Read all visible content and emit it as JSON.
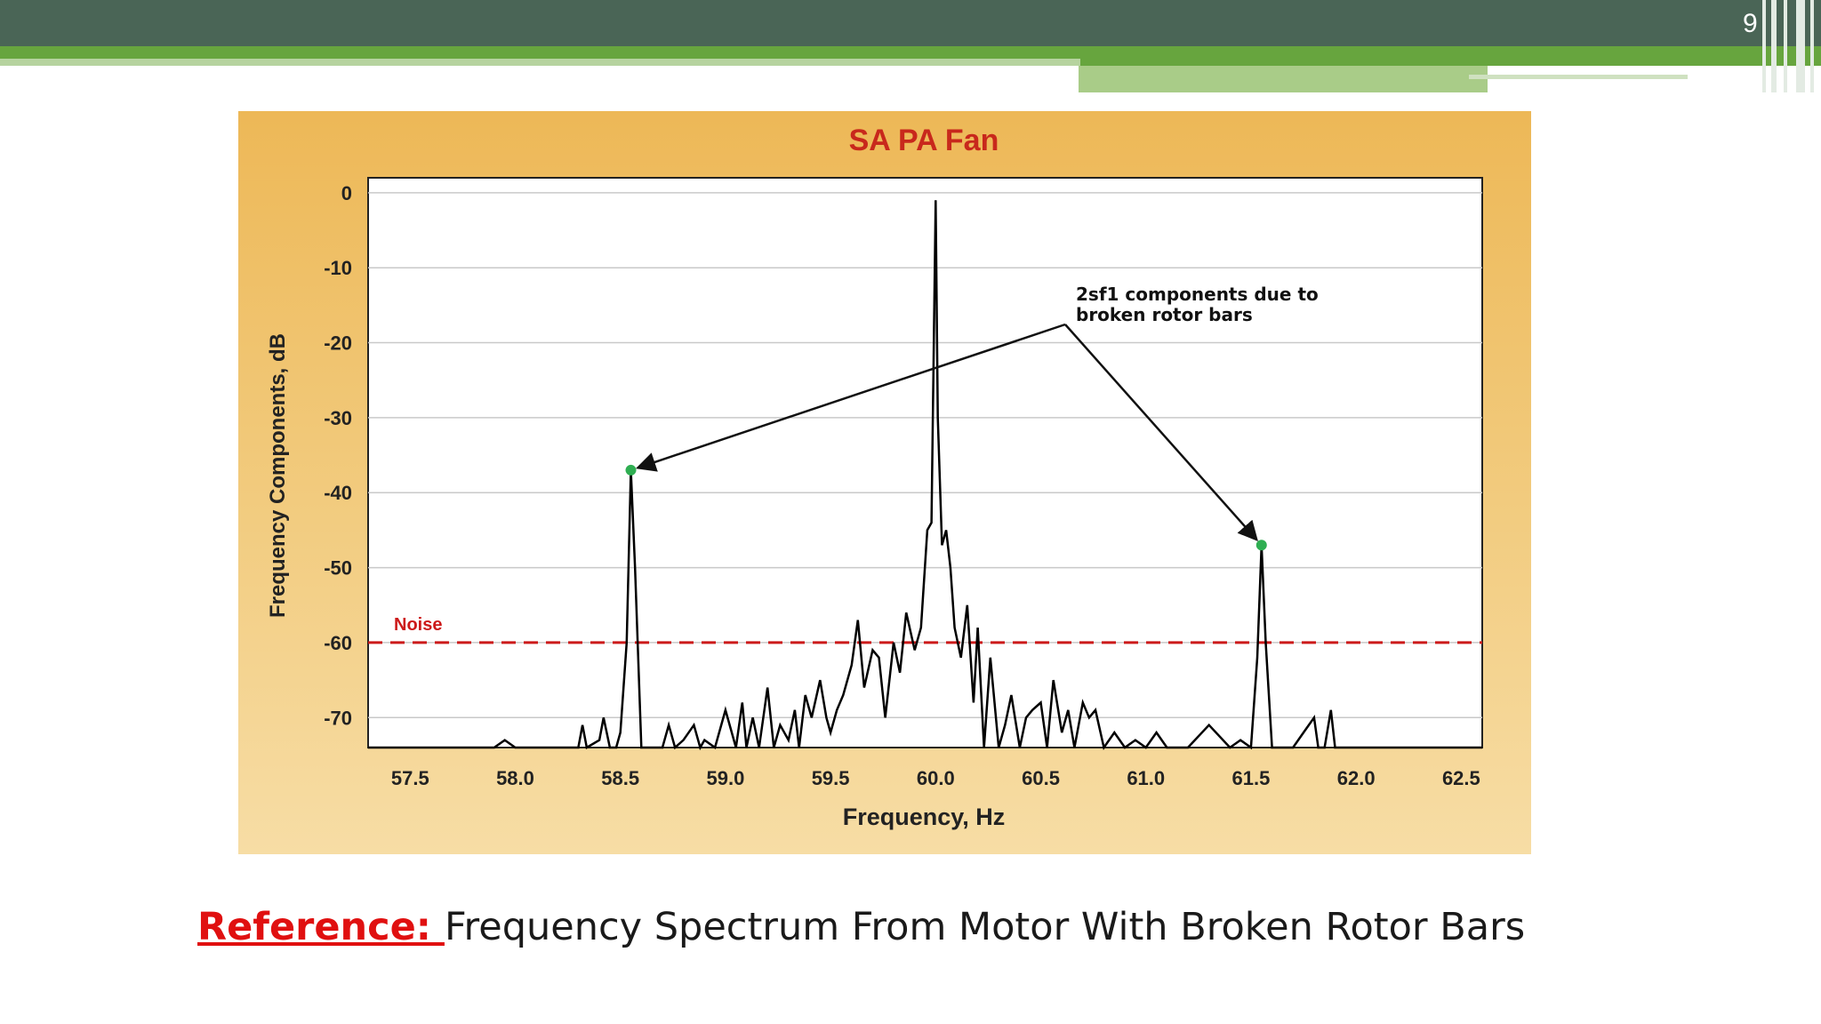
{
  "slide": {
    "number": "9"
  },
  "caption": {
    "reference_label": "Reference: ",
    "text": "Frequency Spectrum From Motor With Broken Rotor Bars"
  },
  "chart_data": {
    "type": "line",
    "title": "SA PA Fan",
    "xlabel": "Frequency, Hz",
    "ylabel": "Frequency Components, dB",
    "xlim": [
      57.3,
      62.6
    ],
    "ylim": [
      -74,
      2
    ],
    "x_ticks": [
      "57.5",
      "58.0",
      "58.5",
      "59.0",
      "59.5",
      "60.0",
      "60.5",
      "61.0",
      "61.5",
      "62.0",
      "62.5"
    ],
    "y_ticks": [
      "0",
      "-10",
      "-20",
      "-30",
      "-40",
      "-50",
      "-60",
      "-70"
    ],
    "grid": true,
    "noise": {
      "label": "Noise",
      "value": -60,
      "color": "#cc1a1a"
    },
    "annotation": {
      "text_line1": "2sf1 components due to",
      "text_line2": "broken rotor bars",
      "points": [
        {
          "x": 58.55,
          "y": -37
        },
        {
          "x": 61.55,
          "y": -47
        }
      ]
    },
    "series": [
      {
        "color": "#000000",
        "x": [
          57.3,
          57.9,
          57.95,
          58.0,
          58.3,
          58.32,
          58.34,
          58.4,
          58.42,
          58.45,
          58.48,
          58.5,
          58.53,
          58.55,
          58.57,
          58.6,
          58.63,
          58.7,
          58.73,
          58.76,
          58.8,
          58.85,
          58.88,
          58.9,
          58.95,
          59.0,
          59.05,
          59.08,
          59.1,
          59.13,
          59.16,
          59.2,
          59.23,
          59.26,
          59.3,
          59.33,
          59.35,
          59.38,
          59.41,
          59.45,
          59.48,
          59.5,
          59.53,
          59.56,
          59.6,
          59.63,
          59.66,
          59.7,
          59.73,
          59.76,
          59.8,
          59.83,
          59.86,
          59.9,
          59.93,
          59.96,
          59.98,
          60.0,
          60.01,
          60.03,
          60.05,
          60.07,
          60.09,
          60.12,
          60.15,
          60.18,
          60.2,
          60.23,
          60.26,
          60.3,
          60.33,
          60.36,
          60.4,
          60.43,
          60.46,
          60.5,
          60.53,
          60.56,
          60.6,
          60.63,
          60.66,
          60.7,
          60.73,
          60.76,
          60.8,
          60.85,
          60.9,
          60.95,
          61.0,
          61.05,
          61.1,
          61.15,
          61.2,
          61.3,
          61.4,
          61.45,
          61.5,
          61.53,
          61.55,
          61.57,
          61.6,
          61.65,
          61.7,
          61.75,
          61.8,
          61.82,
          61.85,
          61.88,
          61.9,
          62.0,
          62.6
        ],
        "y": [
          -74,
          -74,
          -73,
          -74,
          -74,
          -71,
          -74,
          -73,
          -70,
          -74,
          -74,
          -72,
          -60,
          -37,
          -50,
          -74,
          -74,
          -74,
          -71,
          -74,
          -73,
          -71,
          -74,
          -73,
          -74,
          -69,
          -74,
          -68,
          -74,
          -70,
          -74,
          -66,
          -74,
          -71,
          -73,
          -69,
          -74,
          -67,
          -70,
          -65,
          -70,
          -72,
          -69,
          -67,
          -63,
          -57,
          -66,
          -61,
          -62,
          -70,
          -60,
          -64,
          -56,
          -61,
          -58,
          -45,
          -44,
          -1,
          -30,
          -47,
          -45,
          -50,
          -58,
          -62,
          -55,
          -68,
          -58,
          -74,
          -62,
          -74,
          -71,
          -67,
          -74,
          -70,
          -69,
          -68,
          -74,
          -65,
          -72,
          -69,
          -74,
          -68,
          -70,
          -69,
          -74,
          -72,
          -74,
          -73,
          -74,
          -72,
          -74,
          -74,
          -74,
          -71,
          -74,
          -73,
          -74,
          -62,
          -47,
          -60,
          -74,
          -74,
          -74,
          -72,
          -70,
          -74,
          -74,
          -69,
          -74,
          -74,
          -74
        ]
      }
    ]
  }
}
